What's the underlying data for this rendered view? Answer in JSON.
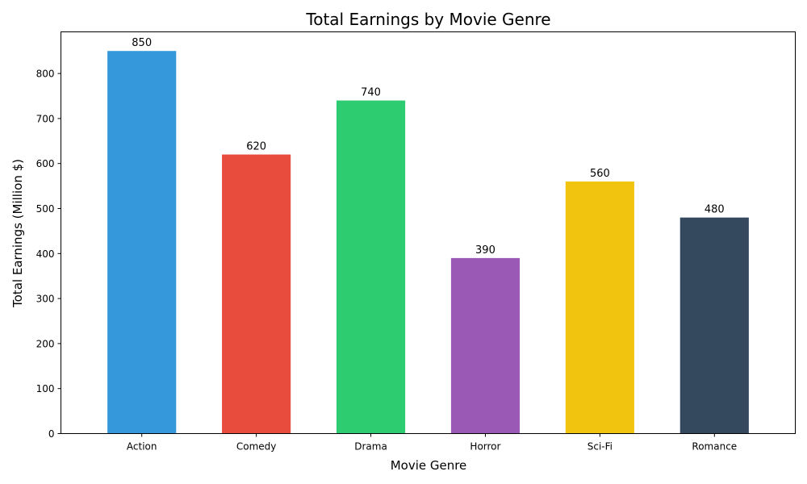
{
  "chart_data": {
    "type": "bar",
    "title": "Total Earnings by Movie Genre",
    "xlabel": "Movie Genre",
    "ylabel": "Total Earnings (Million $)",
    "categories": [
      "Action",
      "Comedy",
      "Drama",
      "Horror",
      "Sci-Fi",
      "Romance"
    ],
    "values": [
      850,
      620,
      740,
      390,
      560,
      480
    ],
    "colors": [
      "#3498db",
      "#e74c3c",
      "#2ecc71",
      "#9b59b6",
      "#f1c40f",
      "#34495e"
    ],
    "ylim": [
      0,
      892.5
    ],
    "yticks": [
      0,
      100,
      200,
      300,
      400,
      500,
      600,
      700,
      800
    ],
    "grid": false,
    "legend": "none"
  }
}
